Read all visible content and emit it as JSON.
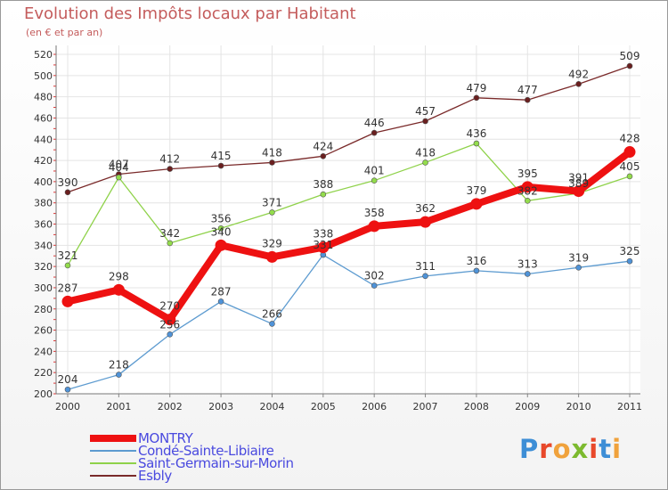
{
  "title": "Evolution des Impôts locaux par Habitant",
  "subtitle": "(en € et par an)",
  "logo": {
    "letters": [
      "P",
      "r",
      "o",
      "x",
      "i",
      "t",
      "i"
    ]
  },
  "chart_data": {
    "type": "line",
    "title": "Evolution des Impôts locaux par Habitant",
    "subtitle": "(en € et par an)",
    "xlabel": "",
    "ylabel": "",
    "x": [
      "2000",
      "2001",
      "2002",
      "2003",
      "2004",
      "2005",
      "2006",
      "2007",
      "2008",
      "2009",
      "2010",
      "2011"
    ],
    "ylim": [
      200,
      520
    ],
    "yticks": [
      200,
      220,
      240,
      260,
      280,
      300,
      320,
      340,
      360,
      380,
      400,
      420,
      440,
      460,
      480,
      500,
      520
    ],
    "grid": true,
    "legend": "bottom-left",
    "series": [
      {
        "name": "Esbly",
        "color": "#7a2a2a",
        "values": [
          390,
          407,
          412,
          415,
          418,
          424,
          446,
          457,
          479,
          477,
          492,
          509
        ]
      },
      {
        "name": "Saint-Germain-sur-Morin",
        "color": "#8fd24a",
        "values": [
          321,
          404,
          342,
          356,
          371,
          388,
          401,
          418,
          436,
          382,
          389,
          405
        ]
      },
      {
        "name": "Condé-Sainte-Libiaire",
        "color": "#5d9bd0",
        "values": [
          204,
          218,
          256,
          287,
          266,
          331,
          302,
          311,
          316,
          313,
          319,
          325
        ]
      },
      {
        "name": "MONTRY",
        "color": "#ee1111",
        "values": [
          287,
          298,
          270,
          340,
          329,
          338,
          358,
          362,
          379,
          395,
          391,
          428
        ]
      }
    ],
    "legend_order": [
      "MONTRY",
      "Condé-Sainte-Libiaire",
      "Saint-Germain-sur-Morin",
      "Esbly"
    ]
  }
}
